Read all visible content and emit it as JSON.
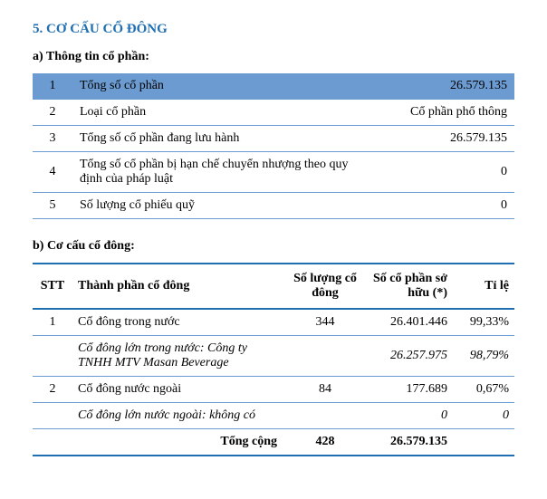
{
  "section_title": "5. CƠ CẤU CỔ ĐÔNG",
  "a": {
    "heading": "a)  Thông tin cổ phần:",
    "rows": [
      {
        "n": "1",
        "label": "Tổng số cổ phần",
        "value": "26.579.135"
      },
      {
        "n": "2",
        "label": "Loại cổ phần",
        "value": "Cổ phần phổ thông"
      },
      {
        "n": "3",
        "label": "Tổng số cổ phần đang lưu hành",
        "value": "26.579.135"
      },
      {
        "n": "4",
        "label": "Tổng số cổ phần bị hạn chế chuyển nhượng theo quy định của pháp luật",
        "value": "0"
      },
      {
        "n": "5",
        "label": "Số lượng cổ phiếu quỹ",
        "value": "0"
      }
    ]
  },
  "b": {
    "heading": "b)  Cơ cấu cổ đông:",
    "headers": {
      "stt": "STT",
      "comp": "Thành phần cổ đông",
      "num": "Số lượng cổ đông",
      "shares": "Số cổ phần sở hữu (*)",
      "ratio": "Tỉ lệ"
    },
    "rows": [
      {
        "stt": "1",
        "comp": "Cổ đông trong nước",
        "num": "344",
        "shares": "26.401.446",
        "ratio": "99,33%"
      },
      {
        "stt": "",
        "comp": "Cổ đông lớn trong nước: Công ty TNHH MTV Masan Beverage",
        "num": "",
        "shares": "26.257.975",
        "ratio": "98,79%",
        "italic": true
      },
      {
        "stt": "2",
        "comp": "Cổ đông nước ngoài",
        "num": "84",
        "shares": "177.689",
        "ratio": "0,67%"
      },
      {
        "stt": "",
        "comp": "Cổ đông lớn nước ngoài: không có",
        "num": "",
        "shares": "0",
        "ratio": "0",
        "italic": true
      }
    ],
    "total": {
      "label": "Tổng cộng",
      "num": "428",
      "shares": "26.579.135",
      "ratio": ""
    }
  }
}
